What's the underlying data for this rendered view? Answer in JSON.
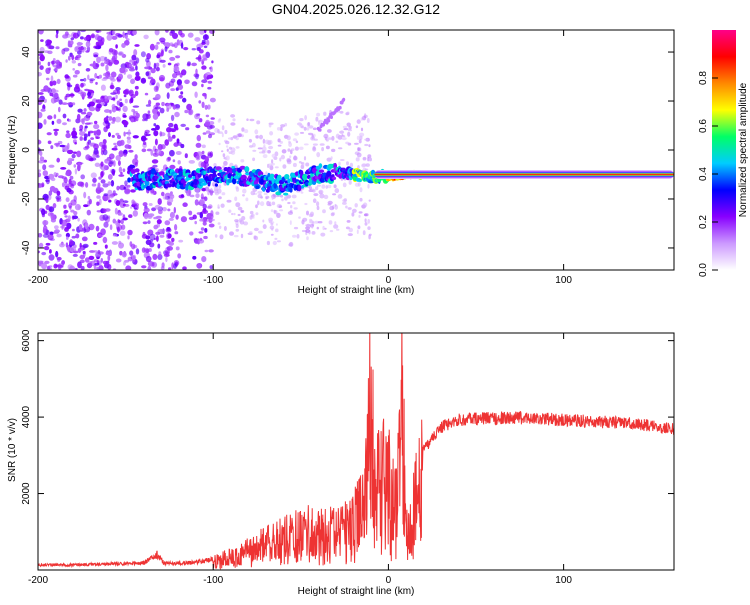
{
  "title": "GN04.2025.026.12.32.G12",
  "chart_data": [
    {
      "type": "heatmap",
      "xlabel": "Height of straight line (km)",
      "ylabel": "Frequency (Hz)",
      "xlim": [
        -200,
        163
      ],
      "ylim": [
        -49,
        49
      ],
      "xticks": [
        "-200",
        "-100",
        "0",
        "100"
      ],
      "yticks": [
        "-40",
        "-20",
        "0",
        "20",
        "40"
      ],
      "xtick_values": [
        -200,
        -100,
        0,
        100
      ],
      "ytick_values": [
        -40,
        -20,
        0,
        20,
        40
      ],
      "track": {
        "x": [
          -145,
          -140,
          -130,
          -120,
          -110,
          -100,
          -90,
          -80,
          -70,
          -60,
          -50,
          -40,
          -30,
          -20,
          -10,
          0,
          10,
          20,
          50,
          100,
          163
        ],
        "freq": [
          -12,
          -13,
          -11,
          -12,
          -12,
          -11,
          -10,
          -11,
          -13,
          -15,
          -12,
          -10,
          -9,
          -10,
          -11,
          -11,
          -10,
          -10,
          -10,
          -10,
          -10
        ]
      },
      "colorbar": {
        "label": "Normalized spectral amplitude",
        "range": [
          0,
          1
        ],
        "ticks": [
          "0.0",
          "0.2",
          "0.4",
          "0.6",
          "0.8"
        ],
        "tick_values": [
          0,
          0.2,
          0.4,
          0.6,
          0.8
        ],
        "colors": [
          "#ffffff",
          "#cc99ff",
          "#8800ff",
          "#0000ff",
          "#00ccff",
          "#00ff66",
          "#ffff00",
          "#ff8800",
          "#ff0000",
          "#ff0088"
        ]
      }
    },
    {
      "type": "line",
      "xlabel": "Height of straight line (km)",
      "ylabel": "SNR (10 * v/v)",
      "xlim": [
        -200,
        163
      ],
      "ylim": [
        0,
        6200
      ],
      "xticks": [
        "-200",
        "-100",
        "0",
        "100"
      ],
      "yticks": [
        "2000",
        "4000",
        "6000"
      ],
      "xtick_values": [
        -200,
        -100,
        0,
        100
      ],
      "ytick_values": [
        2000,
        4000,
        6000
      ],
      "color": "#ee3333",
      "series": [
        {
          "x": [
            -200,
            -180,
            -160,
            -140,
            -132,
            -128,
            -120,
            -110,
            -100,
            -90,
            -80,
            -70,
            -60,
            -50,
            -40,
            -30,
            -20,
            -15,
            -12,
            -10,
            -8,
            -5,
            0,
            5,
            8,
            10,
            15,
            20,
            30,
            40,
            60,
            80,
            100,
            120,
            140,
            163
          ],
          "y": [
            150,
            150,
            180,
            200,
            450,
            200,
            200,
            230,
            300,
            450,
            650,
            900,
            1100,
            1300,
            1350,
            1300,
            1500,
            2400,
            3200,
            6200,
            2600,
            3200,
            3100,
            2200,
            5600,
            1200,
            2400,
            3200,
            3800,
            4000,
            4050,
            4050,
            4000,
            3950,
            3900,
            3750
          ]
        }
      ]
    }
  ]
}
